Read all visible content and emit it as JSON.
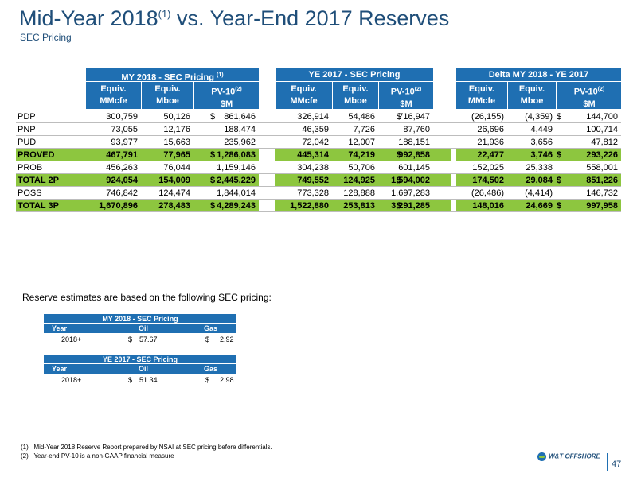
{
  "title": {
    "main": "Mid-Year 2018",
    "sup": "(1)",
    "rest": " vs. Year-End 2017 Reserves",
    "subtitle": "SEC Pricing"
  },
  "groups": [
    {
      "label": "MY 2018 - SEC Pricing ",
      "sup": "(1)"
    },
    {
      "label": "YE 2017 - SEC Pricing",
      "sup": ""
    },
    {
      "label": "Delta MY 2018 - YE 2017",
      "sup": ""
    }
  ],
  "subheads": [
    {
      "l1": "Equiv.",
      "l2": "MMcfe",
      "sup": ""
    },
    {
      "l1": "Equiv.",
      "l2": "Mboe",
      "sup": ""
    },
    {
      "l1": "PV-10",
      "l2": "$M",
      "sup": "(2)"
    },
    {
      "l1": "Equiv.",
      "l2": "MMcfe",
      "sup": ""
    },
    {
      "l1": "Equiv.",
      "l2": "Mboe",
      "sup": ""
    },
    {
      "l1": "PV-10",
      "l2": "$M",
      "sup": "(2)"
    },
    {
      "l1": "Equiv.",
      "l2": "MMcfe",
      "sup": ""
    },
    {
      "l1": "Equiv.",
      "l2": "Mboe",
      "sup": ""
    },
    {
      "l1": "PV-10",
      "l2": "$M",
      "sup": "(2)"
    }
  ],
  "rows": [
    {
      "label": "PDP",
      "hl": false,
      "v": [
        "300,759",
        "50,126",
        "861,646",
        "326,914",
        "54,486",
        "716,947",
        "(26,155)",
        "(4,359)",
        "144,700"
      ],
      "dollar": [
        true,
        true,
        true
      ]
    },
    {
      "label": "PNP",
      "hl": false,
      "v": [
        "73,055",
        "12,176",
        "188,474",
        "46,359",
        "7,726",
        "87,760",
        "26,696",
        "4,449",
        "100,714"
      ],
      "dollar": [
        false,
        false,
        false
      ]
    },
    {
      "label": "PUD",
      "hl": false,
      "v": [
        "93,977",
        "15,663",
        "235,962",
        "72,042",
        "12,007",
        "188,151",
        "21,936",
        "3,656",
        "47,812"
      ],
      "dollar": [
        false,
        false,
        false
      ]
    },
    {
      "label": "PROVED",
      "hl": true,
      "v": [
        "467,791",
        "77,965",
        "1,286,083",
        "445,314",
        "74,219",
        "992,858",
        "22,477",
        "3,746",
        "293,226"
      ],
      "dollar": [
        true,
        true,
        true
      ]
    },
    {
      "label": "PROB",
      "hl": false,
      "v": [
        "456,263",
        "76,044",
        "1,159,146",
        "304,238",
        "50,706",
        "601,145",
        "152,025",
        "25,338",
        "558,001"
      ],
      "dollar": [
        false,
        false,
        false
      ]
    },
    {
      "label": "TOTAL 2P",
      "hl": true,
      "v": [
        "924,054",
        "154,009",
        "2,445,229",
        "749,552",
        "124,925",
        "1,594,002",
        "174,502",
        "29,084",
        "851,226"
      ],
      "dollar": [
        true,
        true,
        true
      ]
    },
    {
      "label": "POSS",
      "hl": false,
      "v": [
        "746,842",
        "124,474",
        "1,844,014",
        "773,328",
        "128,888",
        "1,697,283",
        "(26,486)",
        "(4,414)",
        "146,732"
      ],
      "dollar": [
        false,
        false,
        false
      ]
    },
    {
      "label": "TOTAL 3P",
      "hl": true,
      "v": [
        "1,670,896",
        "278,483",
        "4,289,243",
        "1,522,880",
        "253,813",
        "3,291,285",
        "148,016",
        "24,669",
        "997,958"
      ],
      "dollar": [
        true,
        true,
        true
      ]
    }
  ],
  "dollar_sign": "$",
  "note": "Reserve estimates are based on the following SEC pricing:",
  "pricing": [
    {
      "title": "MY 2018 - SEC Pricing",
      "hdr": [
        "Year",
        "Oil",
        "Gas"
      ],
      "year": "2018+",
      "oil": "57.67",
      "gas": "2.92"
    },
    {
      "title": "YE 2017 - SEC Pricing",
      "hdr": [
        "Year",
        "Oil",
        "Gas"
      ],
      "year": "2018+",
      "oil": "51.34",
      "gas": "2.98"
    }
  ],
  "footnotes": [
    {
      "num": "(1)",
      "text": "Mid-Year 2018 Reserve Report prepared by NSAI at SEC pricing before differentials."
    },
    {
      "num": "(2)",
      "text": "Year-end PV-10 is a non-GAAP financial measure"
    }
  ],
  "logo": "W&T OFFSHORE",
  "page": "47",
  "colors": {
    "header_blue": "#1f6fb2",
    "highlight_green": "#8dc63f",
    "title_blue": "#1f4e79"
  }
}
